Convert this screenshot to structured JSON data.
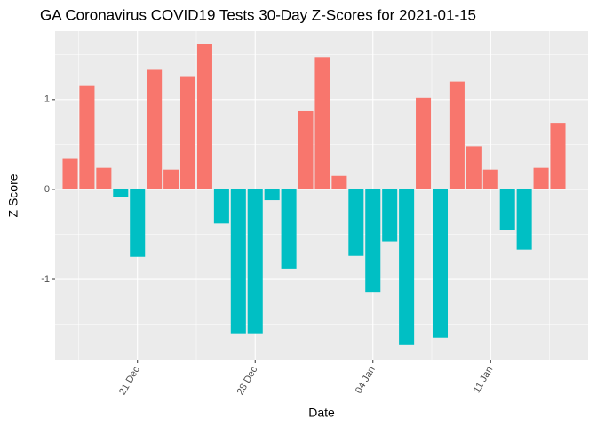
{
  "chart_data": {
    "type": "bar",
    "title": "GA Coronavirus COVID19 Tests 30-Day Z-Scores for 2021-01-15",
    "x_label": "Date",
    "y_label": "Z Score",
    "categories": [
      null,
      null,
      null,
      null,
      "21 Dec",
      null,
      null,
      null,
      null,
      null,
      null,
      "28 Dec",
      null,
      null,
      null,
      null,
      null,
      null,
      "04 Jan",
      null,
      null,
      null,
      null,
      null,
      null,
      "11 Jan",
      null,
      null,
      null,
      null
    ],
    "values": [
      0.34,
      1.15,
      0.24,
      -0.08,
      -0.75,
      1.33,
      0.22,
      1.26,
      1.62,
      -0.38,
      -1.6,
      -1.6,
      -0.12,
      -0.88,
      0.87,
      1.47,
      0.15,
      -0.74,
      -1.14,
      -0.58,
      -1.73,
      1.02,
      -1.65,
      1.2,
      0.48,
      0.22,
      -0.45,
      -0.67,
      0.24,
      0.74
    ],
    "colors": {
      "positive": "#F8766D",
      "negative": "#00BFC4"
    },
    "ylim": [
      -1.9,
      1.76
    ],
    "yticks": [
      -1,
      0,
      1
    ],
    "y_minor_gridlines": [
      -1.5,
      -0.5,
      0.5,
      1.5
    ],
    "grid": true
  }
}
